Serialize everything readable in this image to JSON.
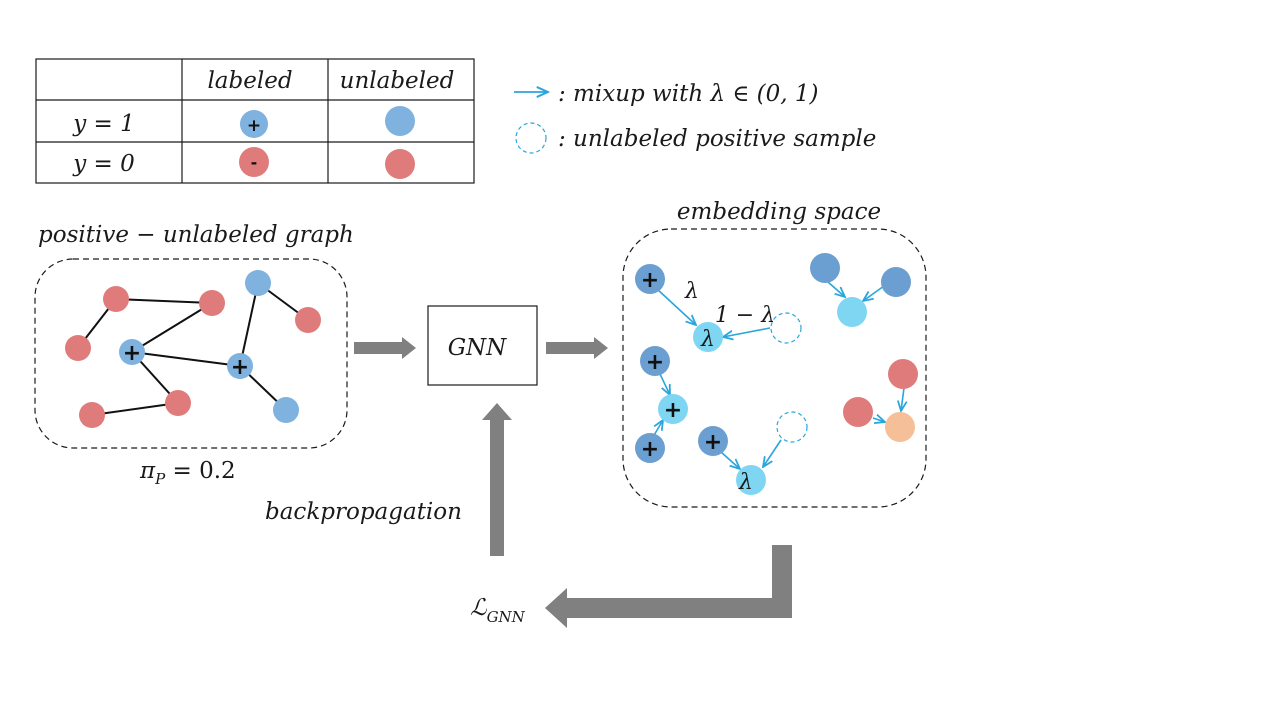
{
  "legend_table": {
    "col_labeled": "labeled",
    "col_unlabeled": "unlabeled",
    "row_y1": "y = 1",
    "row_y0": "y = 0",
    "plus": "+",
    "minus": "-"
  },
  "legend_keys": {
    "mixup": ": mixup with λ ∈ (0, 1)",
    "unlabeled_positive": ": unlabeled positive sample"
  },
  "graph": {
    "title": "positive − unlabeled graph",
    "prior": "π",
    "prior_sub": "P",
    "prior_value": " = 0.2"
  },
  "gnn": {
    "label": "GNN"
  },
  "embedding": {
    "title": "embedding space"
  },
  "mix": {
    "lambda": "λ",
    "one_minus_lambda": "1 − λ",
    "plus": "+"
  },
  "backprop": {
    "label": "backpropagation"
  },
  "loss": {
    "symbol": "ℒ",
    "sub": "GNN"
  },
  "colors": {
    "positive": "#7fb2de",
    "negative": "#e07b7b",
    "mixed_positive": "#7fd6f2",
    "mixed_negative": "#f5bf97",
    "arrow_mixup": "#29a6dc",
    "flow_arrow": "#808080"
  }
}
